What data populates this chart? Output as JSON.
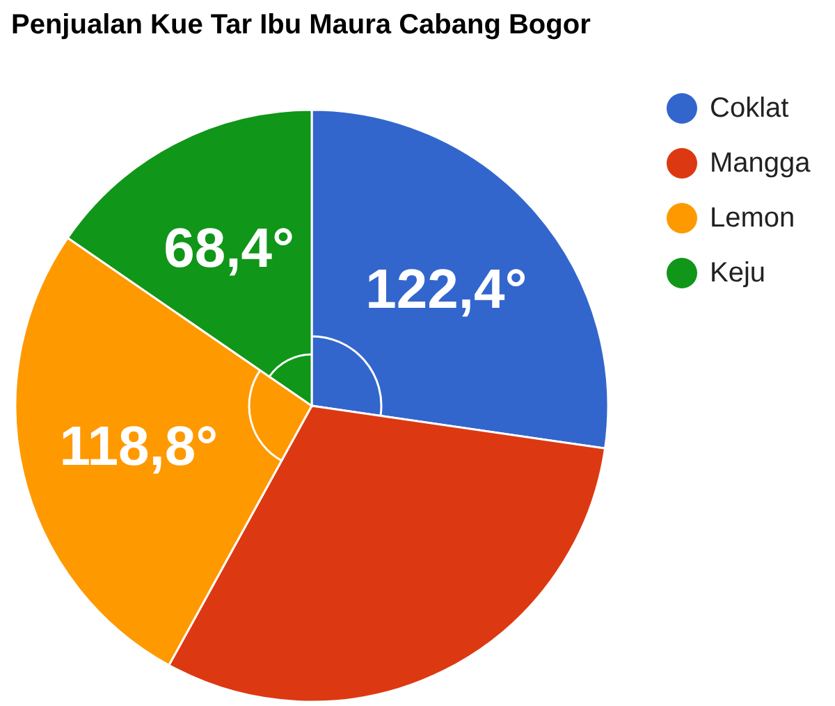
{
  "chart_data": {
    "type": "pie",
    "title": "Penjualan Kue Tar Ibu Maura Cabang Bogor",
    "categories": [
      "Coklat",
      "Mangga",
      "Lemon",
      "Keju"
    ],
    "values": [
      27.3,
      30.7,
      26.6,
      15.4
    ],
    "colors": [
      "#3366cc",
      "#dc3912",
      "#ff9900",
      "#109618"
    ],
    "legend": "right",
    "annotations": [
      {
        "text": "122,4°",
        "x": "Coklat"
      },
      {
        "text": "118,8°",
        "x": "Lemon"
      },
      {
        "text": "68,4°",
        "x": "Keju"
      }
    ]
  }
}
